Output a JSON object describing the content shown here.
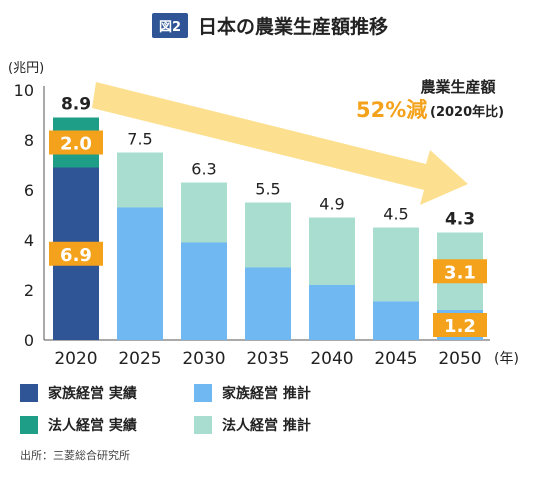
{
  "header": {
    "badge": "図2",
    "title": "日本の農業生産額推移"
  },
  "colors": {
    "family_actual": "#2f5597",
    "corporate_actual": "#1e9e87",
    "family_estimate": "#70b8f2",
    "corporate_estimate": "#a8ddd0",
    "label_box": "#f4a21b",
    "arrow": "#fce08f",
    "highlight": "#f4a21b"
  },
  "annotation": {
    "line1": "農業生産額",
    "pct": "52%減",
    "paren": "(2020年比)"
  },
  "legend": [
    {
      "label": "家族経営 実績",
      "color": "#2f5597"
    },
    {
      "label": "家族経営 推計",
      "color": "#70b8f2"
    },
    {
      "label": "法人経営 実績",
      "color": "#1e9e87"
    },
    {
      "label": "法人経営 推計",
      "color": "#a8ddd0"
    }
  ],
  "source": "出所：三菱総合研究所",
  "chart_data": {
    "type": "bar",
    "stacked": true,
    "y_unit_label": "(兆円)",
    "x_unit_label": "(年)",
    "ylim": [
      0,
      10
    ],
    "yticks": [
      0,
      2,
      4,
      6,
      8,
      10
    ],
    "categories": [
      "2020",
      "2025",
      "2030",
      "2035",
      "2040",
      "2045",
      "2050"
    ],
    "totals": [
      "8.9",
      "7.5",
      "6.3",
      "5.5",
      "4.9",
      "4.5",
      "4.3"
    ],
    "series": [
      {
        "name": "家族経営",
        "values": [
          6.9,
          5.3,
          3.9,
          2.9,
          2.2,
          1.55,
          1.2
        ]
      },
      {
        "name": "法人経営",
        "values": [
          2.0,
          2.2,
          2.4,
          2.6,
          2.7,
          2.95,
          3.1
        ]
      }
    ],
    "value_boxes": [
      {
        "category": "2020",
        "series": "法人経営",
        "text": "2.0"
      },
      {
        "category": "2020",
        "series": "家族経営",
        "text": "6.9"
      },
      {
        "category": "2050",
        "series": "法人経営",
        "text": "3.1"
      },
      {
        "category": "2050",
        "series": "家族経営",
        "text": "1.2"
      }
    ]
  }
}
